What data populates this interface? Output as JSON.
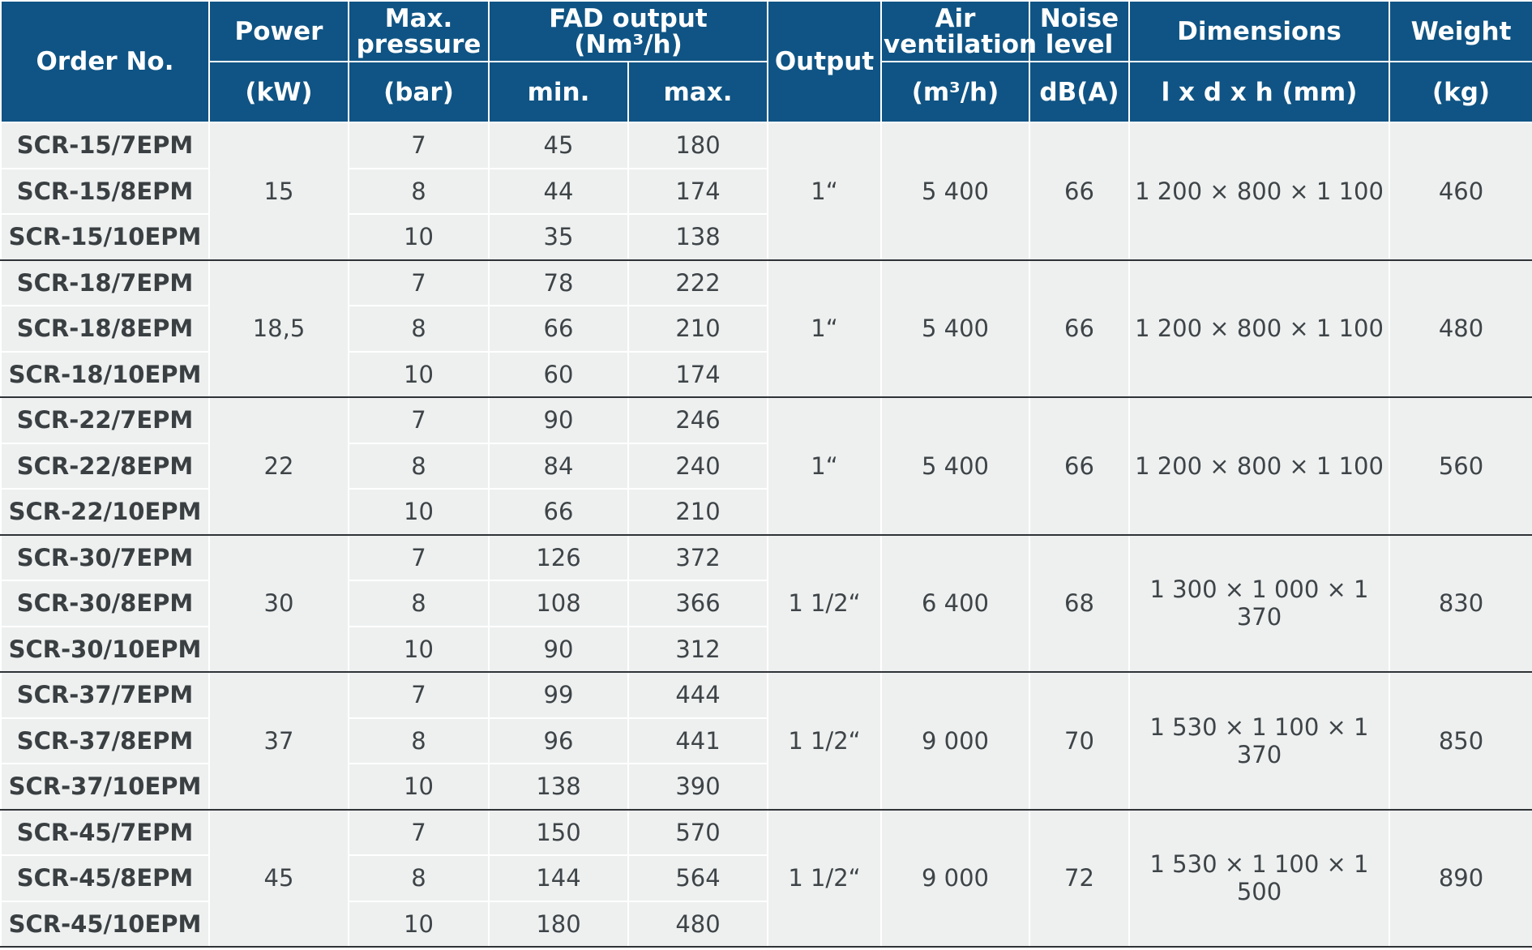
{
  "header": {
    "order_no": "Order No.",
    "power": "Power",
    "power_unit": "(kW)",
    "max_pressure_line1": "Max.",
    "max_pressure_line2": "pressure",
    "max_pressure_unit": "(bar)",
    "fad_output": "FAD output (Nm³/h)",
    "fad_min": "min.",
    "fad_max": "max.",
    "output": "Output",
    "air_ventilation_line1": "Air",
    "air_ventilation_line2": "ventilation",
    "air_ventilation_unit": "(m³/h)",
    "noise_line1": "Noise",
    "noise_line2": "level",
    "noise_unit": "dB(A)",
    "dimensions": "Dimensions",
    "dimensions_unit": "l x d x h (mm)",
    "weight": "Weight",
    "weight_unit": "(kg)"
  },
  "groups": [
    {
      "power": "15",
      "output": "1“",
      "air": "5 400",
      "noise": "66",
      "dimensions": "1 200 × 800 × 1 100",
      "weight": "460",
      "rows": [
        {
          "order": "SCR-15/7EPM",
          "pressure": "7",
          "min": "45",
          "max": "180"
        },
        {
          "order": "SCR-15/8EPM",
          "pressure": "8",
          "min": "44",
          "max": "174"
        },
        {
          "order": "SCR-15/10EPM",
          "pressure": "10",
          "min": "35",
          "max": "138"
        }
      ]
    },
    {
      "power": "18,5",
      "output": "1“",
      "air": "5 400",
      "noise": "66",
      "dimensions": "1 200 × 800 × 1 100",
      "weight": "480",
      "rows": [
        {
          "order": "SCR-18/7EPM",
          "pressure": "7",
          "min": "78",
          "max": "222"
        },
        {
          "order": "SCR-18/8EPM",
          "pressure": "8",
          "min": "66",
          "max": "210"
        },
        {
          "order": "SCR-18/10EPM",
          "pressure": "10",
          "min": "60",
          "max": "174"
        }
      ]
    },
    {
      "power": "22",
      "output": "1“",
      "air": "5 400",
      "noise": "66",
      "dimensions": "1 200 × 800 × 1 100",
      "weight": "560",
      "rows": [
        {
          "order": "SCR-22/7EPM",
          "pressure": "7",
          "min": "90",
          "max": "246"
        },
        {
          "order": "SCR-22/8EPM",
          "pressure": "8",
          "min": "84",
          "max": "240"
        },
        {
          "order": "SCR-22/10EPM",
          "pressure": "10",
          "min": "66",
          "max": "210"
        }
      ]
    },
    {
      "power": "30",
      "output": "1 1/2“",
      "air": "6 400",
      "noise": "68",
      "dimensions": "1 300 × 1 000 × 1 370",
      "weight": "830",
      "rows": [
        {
          "order": "SCR-30/7EPM",
          "pressure": "7",
          "min": "126",
          "max": "372"
        },
        {
          "order": "SCR-30/8EPM",
          "pressure": "8",
          "min": "108",
          "max": "366"
        },
        {
          "order": "SCR-30/10EPM",
          "pressure": "10",
          "min": "90",
          "max": "312"
        }
      ]
    },
    {
      "power": "37",
      "output": "1 1/2“",
      "air": "9 000",
      "noise": "70",
      "dimensions": "1 530 × 1 100 × 1 370",
      "weight": "850",
      "rows": [
        {
          "order": "SCR-37/7EPM",
          "pressure": "7",
          "min": "99",
          "max": "444"
        },
        {
          "order": "SCR-37/8EPM",
          "pressure": "8",
          "min": "96",
          "max": "441"
        },
        {
          "order": "SCR-37/10EPM",
          "pressure": "10",
          "min": "138",
          "max": "390"
        }
      ]
    },
    {
      "power": "45",
      "output": "1 1/2“",
      "air": "9 000",
      "noise": "72",
      "dimensions": "1 530 × 1 100 × 1 500",
      "weight": "890",
      "rows": [
        {
          "order": "SCR-45/7EPM",
          "pressure": "7",
          "min": "150",
          "max": "570"
        },
        {
          "order": "SCR-45/8EPM",
          "pressure": "8",
          "min": "144",
          "max": "564"
        },
        {
          "order": "SCR-45/10EPM",
          "pressure": "10",
          "min": "180",
          "max": "480"
        }
      ]
    }
  ]
}
